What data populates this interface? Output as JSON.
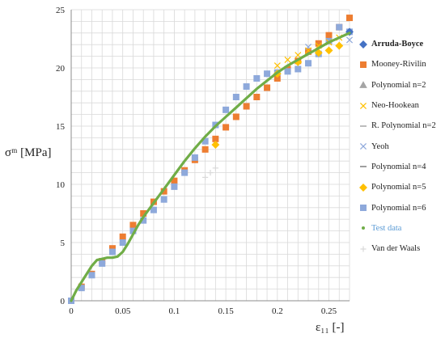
{
  "axis": {
    "ylabel": "σᵐ [MPa]",
    "xlabel": "ε₁₁ [-]"
  },
  "legend": [
    {
      "label": "Arruda-Boyce",
      "bold": true,
      "marker": "diamond",
      "color": "#4472c4"
    },
    {
      "label": "Mooney-Rivilin",
      "marker": "square",
      "color": "#ed7d31"
    },
    {
      "label": "Polynomial n=2",
      "marker": "triangle",
      "color": "#a5a5a5"
    },
    {
      "label": "Neo-Hookean",
      "marker": "x",
      "color": "#ffc000"
    },
    {
      "label": "R. Polynomial n=2",
      "marker": "dash",
      "color": "#a5a5a5"
    },
    {
      "label": "Yeoh",
      "marker": "x",
      "color": "#8ea9db"
    },
    {
      "label": "Polynomial n=4",
      "marker": "dash",
      "color": "#7f7f7f"
    },
    {
      "label": "Polynomial n=5",
      "marker": "diamond",
      "color": "#ffc000"
    },
    {
      "label": "Polynomial n=6",
      "marker": "square",
      "color": "#8ea9db"
    },
    {
      "label": "Test data",
      "blue": true,
      "marker": "dot",
      "color": "#70ad47"
    },
    {
      "label": "Van der Waals",
      "marker": "plus",
      "color": "#d9d9d9"
    }
  ],
  "chart_data": {
    "type": "scatter",
    "xlim": [
      0,
      0.27
    ],
    "ylim": [
      0,
      25
    ],
    "xticks": [
      "0",
      "0.05",
      "0.1",
      "0.15",
      "0.2",
      "0.25"
    ],
    "xtick_values": [
      0,
      0.05,
      0.1,
      0.15,
      0.2,
      0.25
    ],
    "yticks": [
      "0",
      "5",
      "10",
      "15",
      "20",
      "25"
    ],
    "ytick_values": [
      0,
      5,
      10,
      15,
      20,
      25
    ],
    "grid": true,
    "legend_position": "right",
    "series": [
      {
        "name": "Mooney-Rivilin",
        "marker": "square",
        "color": "#ed7d31",
        "x": [
          0,
          0.01,
          0.02,
          0.03,
          0.04,
          0.05,
          0.06,
          0.07,
          0.08,
          0.09,
          0.1,
          0.11,
          0.12,
          0.13,
          0.14,
          0.15,
          0.16,
          0.17,
          0.18,
          0.19,
          0.2,
          0.21,
          0.22,
          0.23,
          0.24,
          0.25,
          0.26,
          0.27
        ],
        "y": [
          0,
          1.2,
          2.3,
          3.4,
          4.5,
          5.5,
          6.5,
          7.5,
          8.5,
          9.4,
          10.3,
          11.2,
          12.1,
          13,
          13.9,
          14.9,
          15.8,
          16.7,
          17.5,
          18.3,
          19.1,
          19.9,
          20.6,
          21.4,
          22.1,
          22.8,
          23.5,
          24.3
        ]
      },
      {
        "name": "Polynomial n=6",
        "marker": "square",
        "color": "#8ea9db",
        "x": [
          0,
          0.01,
          0.02,
          0.03,
          0.04,
          0.05,
          0.06,
          0.07,
          0.08,
          0.09,
          0.1,
          0.11,
          0.12,
          0.13,
          0.14,
          0.15,
          0.16,
          0.17,
          0.18,
          0.19,
          0.2,
          0.21,
          0.22,
          0.23,
          0.24,
          0.25,
          0.26,
          0.27
        ],
        "y": [
          0,
          1.1,
          2.2,
          3.2,
          4.2,
          5.0,
          6.0,
          6.9,
          7.8,
          8.7,
          9.8,
          11.0,
          12.3,
          13.7,
          15.1,
          16.4,
          17.5,
          18.4,
          19.1,
          19.5,
          19.6,
          19.7,
          19.9,
          20.4,
          21.2,
          22.3,
          23.5,
          23.1
        ]
      },
      {
        "name": "Arruda-Boyce",
        "marker": "diamond",
        "color": "#4472c4",
        "x": [
          0.27
        ],
        "y": [
          23.1
        ]
      },
      {
        "name": "Yeoh",
        "marker": "x",
        "color": "#8ea9db",
        "x": [
          0.23,
          0.27
        ],
        "y": [
          21.8,
          22.4
        ]
      },
      {
        "name": "Neo-Hookean",
        "marker": "x",
        "color": "#ffc000",
        "x": [
          0.2,
          0.21,
          0.22,
          0.23,
          0.24,
          0.25,
          0.26
        ],
        "y": [
          20.2,
          20.7,
          21.1,
          21.5,
          21.9,
          22.2,
          22.6
        ]
      },
      {
        "name": "Polynomial n=5",
        "marker": "diamond",
        "color": "#ffc000",
        "x": [
          0.14,
          0.2,
          0.22,
          0.24,
          0.25,
          0.26
        ],
        "y": [
          13.4,
          19.5,
          20.5,
          21.3,
          21.5,
          21.9
        ]
      },
      {
        "name": "Van der Waals",
        "marker": "plus",
        "color": "#d9d9d9",
        "x": [
          0.13,
          0.135,
          0.14
        ],
        "y": [
          10.6,
          11.0,
          11.4
        ]
      },
      {
        "name": "Test data",
        "marker": "line",
        "color": "#70ad47",
        "x": [
          0,
          0.005,
          0.01,
          0.015,
          0.02,
          0.025,
          0.03,
          0.035,
          0.04,
          0.045,
          0.05,
          0.055,
          0.06,
          0.065,
          0.07,
          0.075,
          0.08,
          0.085,
          0.09,
          0.1,
          0.11,
          0.12,
          0.13,
          0.14,
          0.15,
          0.16,
          0.17,
          0.18,
          0.19,
          0.2,
          0.21,
          0.22,
          0.23,
          0.24,
          0.25,
          0.26,
          0.27
        ],
        "y": [
          0,
          0.9,
          1.6,
          2.3,
          3.0,
          3.5,
          3.6,
          3.7,
          3.7,
          3.8,
          4.2,
          4.9,
          5.7,
          6.5,
          7.2,
          7.8,
          8.4,
          9.0,
          9.6,
          10.8,
          12.0,
          13.1,
          14.1,
          15.0,
          15.8,
          16.6,
          17.4,
          18.2,
          18.9,
          19.6,
          20.2,
          20.7,
          21.2,
          21.7,
          22.2,
          22.6,
          23.0
        ]
      }
    ]
  }
}
